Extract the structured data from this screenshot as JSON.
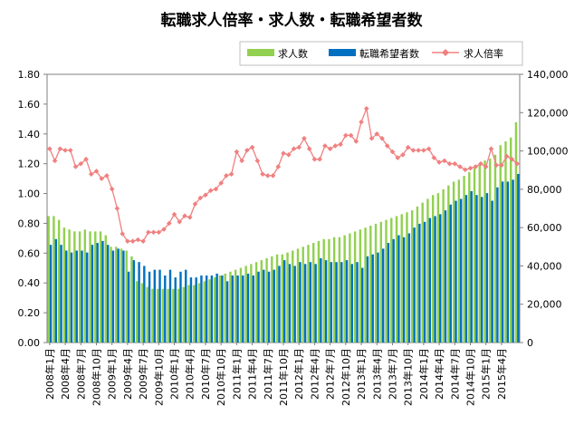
{
  "chart_data": {
    "type": "bar",
    "title": "転職求人倍率・求人数・転職希望者数",
    "legend": [
      "求人数",
      "転職希望者数",
      "求人倍率"
    ],
    "colors": {
      "jobs": "#92d050",
      "seekers": "#0070c0",
      "ratio": "#f08080"
    },
    "y_left": {
      "min": 0,
      "max": 1.8,
      "step": 0.2,
      "ticks": [
        "0.00",
        "0.20",
        "0.40",
        "0.60",
        "0.80",
        "1.00",
        "1.20",
        "1.40",
        "1.60",
        "1.80"
      ]
    },
    "y_right": {
      "min": 0,
      "max": 140000,
      "step": 20000,
      "ticks": [
        "0",
        "20,000",
        "40,000",
        "60,000",
        "80,000",
        "100,000",
        "120,000",
        "140,000"
      ]
    },
    "x_tick_labels": [
      "2008年1月",
      "2008年4月",
      "2008年7月",
      "2008年10月",
      "2009年1月",
      "2009年4月",
      "2009年7月",
      "2009年10月",
      "2010年1月",
      "2010年4月",
      "2010年7月",
      "2010年10月",
      "2011年1月",
      "2011年4月",
      "2011年7月",
      "2011年10月",
      "2012年1月",
      "2012年4月",
      "2012年7月",
      "2012年10月",
      "2013年1月",
      "2013年4月",
      "2013年7月",
      "2013年10月",
      "2014年1月",
      "2014年4月",
      "2014年7月",
      "2014年10月",
      "2015年1月",
      "2015年4月"
    ],
    "months": 91,
    "series": [
      {
        "name": "求人数",
        "axis": "right",
        "values": [
          66000,
          66000,
          64000,
          60000,
          59000,
          58000,
          58000,
          59000,
          58000,
          58000,
          58000,
          56000,
          50000,
          50000,
          49000,
          48000,
          45000,
          32000,
          31000,
          29000,
          28000,
          28000,
          28000,
          28000,
          28000,
          28000,
          29000,
          30000,
          30000,
          31000,
          32000,
          33000,
          34000,
          35000,
          36000,
          37000,
          38000,
          39000,
          40000,
          41000,
          42000,
          43000,
          44000,
          45000,
          46000,
          46000,
          47000,
          48000,
          49000,
          50000,
          51000,
          52000,
          53000,
          54000,
          54000,
          55000,
          55000,
          56000,
          57000,
          58000,
          59000,
          60000,
          61000,
          62000,
          63000,
          64000,
          65000,
          66000,
          67000,
          68000,
          69000,
          71000,
          73000,
          75000,
          77000,
          78000,
          80000,
          82000,
          84000,
          85000,
          87000,
          89000,
          91000,
          93000,
          95000,
          96000,
          98000,
          103000,
          105000,
          107000,
          115000
        ]
      },
      {
        "name": "転職希望者数",
        "axis": "right",
        "values": [
          51000,
          54000,
          51000,
          48000,
          47000,
          48000,
          48000,
          47000,
          51000,
          52000,
          53000,
          51000,
          48000,
          49000,
          48000,
          37000,
          43000,
          42000,
          40000,
          37000,
          38000,
          38000,
          35000,
          38000,
          34000,
          37000,
          38000,
          34000,
          34000,
          35000,
          35000,
          35000,
          36000,
          35000,
          32000,
          35000,
          35000,
          35000,
          36000,
          35000,
          37000,
          38000,
          37000,
          38000,
          40000,
          43000,
          41000,
          40000,
          42000,
          41000,
          42000,
          41000,
          44000,
          43000,
          42000,
          42000,
          42000,
          43000,
          41000,
          42000,
          39000,
          45000,
          46000,
          47000,
          49000,
          52000,
          54000,
          56000,
          55000,
          57000,
          60000,
          62000,
          63000,
          65000,
          66000,
          67000,
          69000,
          72000,
          74000,
          75000,
          77000,
          79000,
          77000,
          76000,
          78000,
          74000,
          81000,
          84000,
          84000,
          85000,
          88000
        ]
      },
      {
        "name": "求人倍率",
        "axis": "left",
        "values": [
          1.3,
          1.22,
          1.3,
          1.29,
          1.29,
          1.18,
          1.2,
          1.23,
          1.13,
          1.15,
          1.1,
          1.12,
          1.03,
          0.9,
          0.73,
          0.68,
          0.68,
          0.69,
          0.68,
          0.74,
          0.74,
          0.74,
          0.76,
          0.8,
          0.86,
          0.81,
          0.85,
          0.84,
          0.93,
          0.97,
          0.99,
          1.02,
          1.03,
          1.07,
          1.12,
          1.13,
          1.28,
          1.22,
          1.29,
          1.31,
          1.22,
          1.13,
          1.12,
          1.12,
          1.18,
          1.27,
          1.26,
          1.3,
          1.31,
          1.37,
          1.3,
          1.23,
          1.23,
          1.32,
          1.3,
          1.32,
          1.33,
          1.39,
          1.39,
          1.35,
          1.48,
          1.57,
          1.37,
          1.4,
          1.37,
          1.32,
          1.28,
          1.24,
          1.26,
          1.31,
          1.29,
          1.29,
          1.29,
          1.3,
          1.24,
          1.21,
          1.22,
          1.2,
          1.2,
          1.18,
          1.16,
          1.17,
          1.18,
          1.2,
          1.18,
          1.3,
          1.19,
          1.19,
          1.25,
          1.23,
          1.2
        ]
      }
    ]
  }
}
